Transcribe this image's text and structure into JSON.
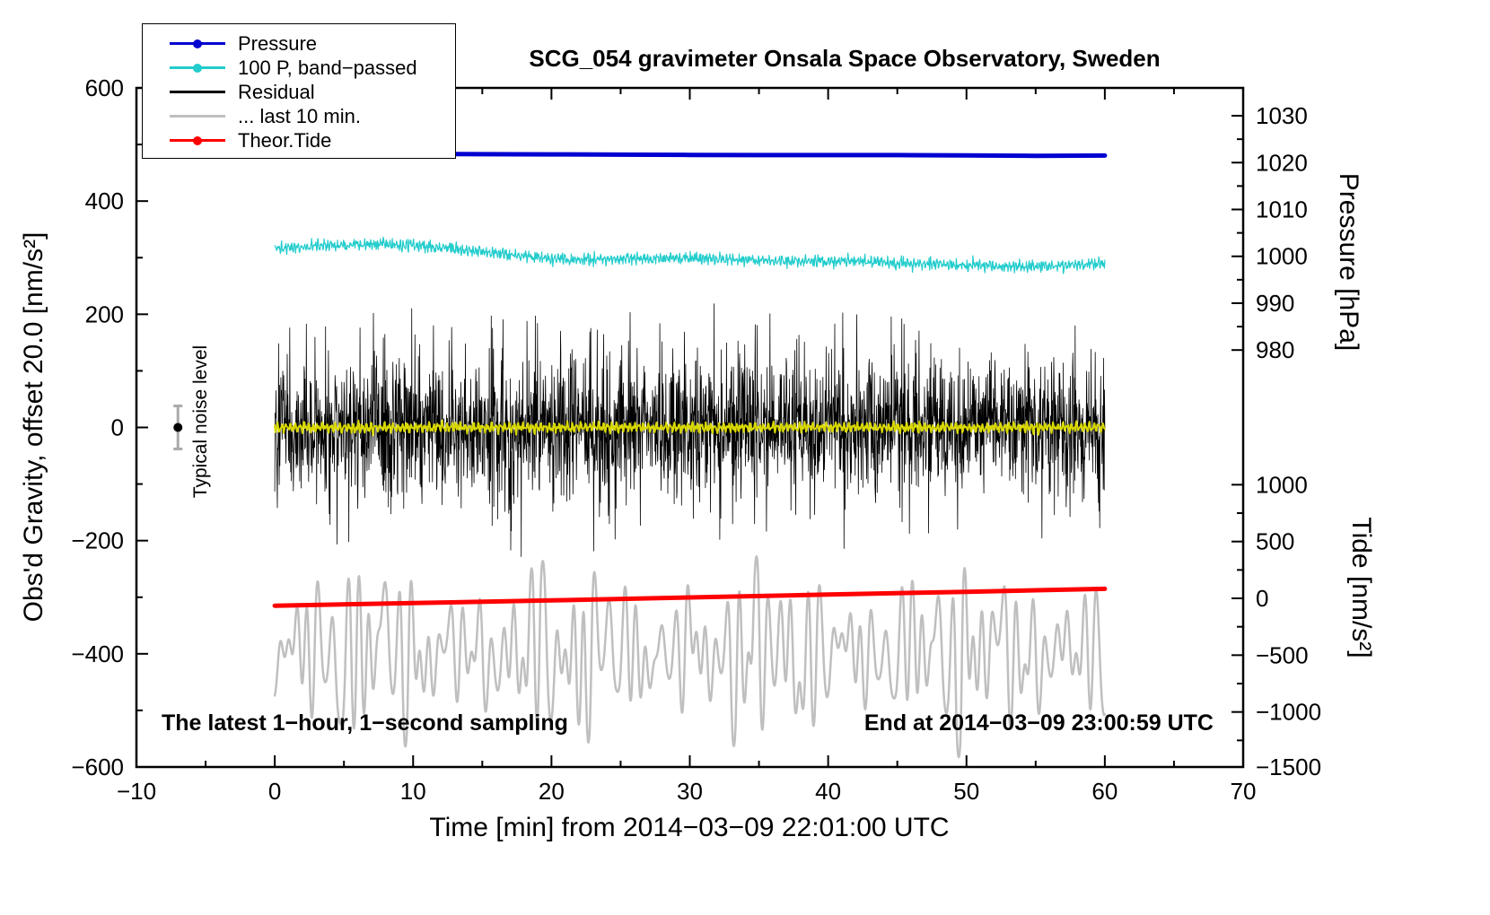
{
  "chart_data": {
    "type": "line",
    "title": "SCG_054 gravimeter Onsala Space Observatory, Sweden",
    "notes": {
      "sampling": "The latest 1−hour, 1−second sampling",
      "end_time": "End at 2014−03−09 23:00:59 UTC",
      "noise_marker_label": "Typical noise level"
    },
    "axes": {
      "x": {
        "label": "Time [min] from 2014−03−09 22:01:00 UTC",
        "min": -10,
        "max": 70,
        "major_step": 10,
        "minor_step": 5
      },
      "gravity": {
        "label": "Obs'd Gravity, offset 20.0 [nm/s²]",
        "min": -600,
        "max": 600,
        "major_step": 200,
        "minor_step": 100
      },
      "pressure": {
        "label": "Pressure [hPa]",
        "major_ticks": [
          980,
          990,
          1000,
          1010,
          1020,
          1030
        ],
        "minor_step": 5,
        "gravity_at_1020hpa": 468,
        "gravity_units_per_hpa": 8.28
      },
      "tide": {
        "label": "Tide [nm/s²]",
        "major_ticks": [
          -1500,
          -1000,
          -500,
          0,
          500,
          1000
        ],
        "minor_step": 250,
        "gravity_at_zero": -302,
        "gravity_units_per_unit": 0.2008
      }
    },
    "legend": [
      {
        "label": "Pressure",
        "color": "#0000d0",
        "dot": true
      },
      {
        "label": "100 P, band−passed",
        "color": "#22cccc",
        "dot": true
      },
      {
        "label": "Residual",
        "color": "#000000",
        "dot": false
      },
      {
        "label": "... last 10 min.",
        "color": "#bfbfbf",
        "dot": false
      },
      {
        "label": "Theor.Tide",
        "color": "#ff0000",
        "dot": true
      }
    ],
    "noise_seed": 20140309,
    "noise_marker": {
      "x_min": -7,
      "gravity": 0,
      "error_gravity": 38
    },
    "series": [
      {
        "name": "Pressure",
        "axis": "pressure",
        "color": "#0000d0",
        "width": 5,
        "render": "polyline",
        "points": [
          [
            0,
            1021.9
          ],
          [
            5,
            1021.9
          ],
          [
            10,
            1021.85
          ],
          [
            15,
            1021.8
          ],
          [
            20,
            1021.75
          ],
          [
            25,
            1021.7
          ],
          [
            30,
            1021.65
          ],
          [
            35,
            1021.6
          ],
          [
            40,
            1021.6
          ],
          [
            45,
            1021.6
          ],
          [
            50,
            1021.55
          ],
          [
            55,
            1021.45
          ],
          [
            60,
            1021.5
          ]
        ]
      },
      {
        "name": "100 P, band−passed",
        "axis": "gravity",
        "color": "#22cccc",
        "width": 1.2,
        "render": "noisy",
        "x_start": 0,
        "x_end": 60,
        "n": 1800,
        "gauss_sigma": 3.5,
        "base_points": [
          [
            0,
            316
          ],
          [
            4,
            322
          ],
          [
            8,
            324
          ],
          [
            12,
            318
          ],
          [
            15,
            310
          ],
          [
            18,
            302
          ],
          [
            21,
            297
          ],
          [
            25,
            297
          ],
          [
            30,
            300
          ],
          [
            34,
            296
          ],
          [
            38,
            293
          ],
          [
            42,
            294
          ],
          [
            46,
            290
          ],
          [
            50,
            287
          ],
          [
            54,
            284
          ],
          [
            57,
            287
          ],
          [
            60,
            290
          ]
        ],
        "components": [
          {
            "freq": 4.2,
            "amp": 4
          },
          {
            "freq": 6.5,
            "amp": 3
          },
          {
            "freq": 9.1,
            "amp": 2.5
          }
        ]
      },
      {
        "name": "Residual",
        "axis": "gravity",
        "color": "#000000",
        "width": 0.8,
        "render": "spiky_noise",
        "x_start": 0,
        "x_end": 60,
        "n": 2600,
        "mean": 0,
        "gauss_sigma": 58,
        "spike_prob": 0.06,
        "spike_min": 80,
        "spike_max": 230,
        "soft_limit": 265
      },
      {
        "name": "Residual low-pass",
        "axis": "gravity",
        "color": "#d8d800",
        "width": 2,
        "render": "noisy",
        "x_start": 0,
        "x_end": 60,
        "n": 1200,
        "gauss_sigma": 2,
        "base_points": [
          [
            0,
            0
          ],
          [
            60,
            0
          ]
        ],
        "components": [
          {
            "freq": 3.1,
            "amp": 5
          },
          {
            "freq": 5.3,
            "amp": 4
          }
        ]
      },
      {
        "name": "... last 10 min.",
        "axis": "tide",
        "color": "#bfbfbf",
        "width": 2.5,
        "render": "oscillation",
        "x_start": 0,
        "x_end": 60,
        "n": 2000,
        "center": -480,
        "soft_limit": 1050,
        "envelope": {
          "freq": 0.07,
          "depth": 0.35
        },
        "components": [
          {
            "freq": 1.05,
            "amp": 300
          },
          {
            "freq": 1.35,
            "amp": 250
          },
          {
            "freq": 0.85,
            "amp": 210
          },
          {
            "freq": 1.6,
            "amp": 160
          },
          {
            "freq": 0.45,
            "amp": 160
          },
          {
            "freq": 0.18,
            "amp": 120
          }
        ]
      },
      {
        "name": "Theor.Tide",
        "axis": "tide",
        "color": "#ff0000",
        "width": 5,
        "render": "polyline",
        "points": [
          [
            0,
            -65
          ],
          [
            10,
            -42
          ],
          [
            20,
            -18
          ],
          [
            30,
            8
          ],
          [
            40,
            33
          ],
          [
            50,
            58
          ],
          [
            60,
            84
          ]
        ]
      }
    ]
  }
}
